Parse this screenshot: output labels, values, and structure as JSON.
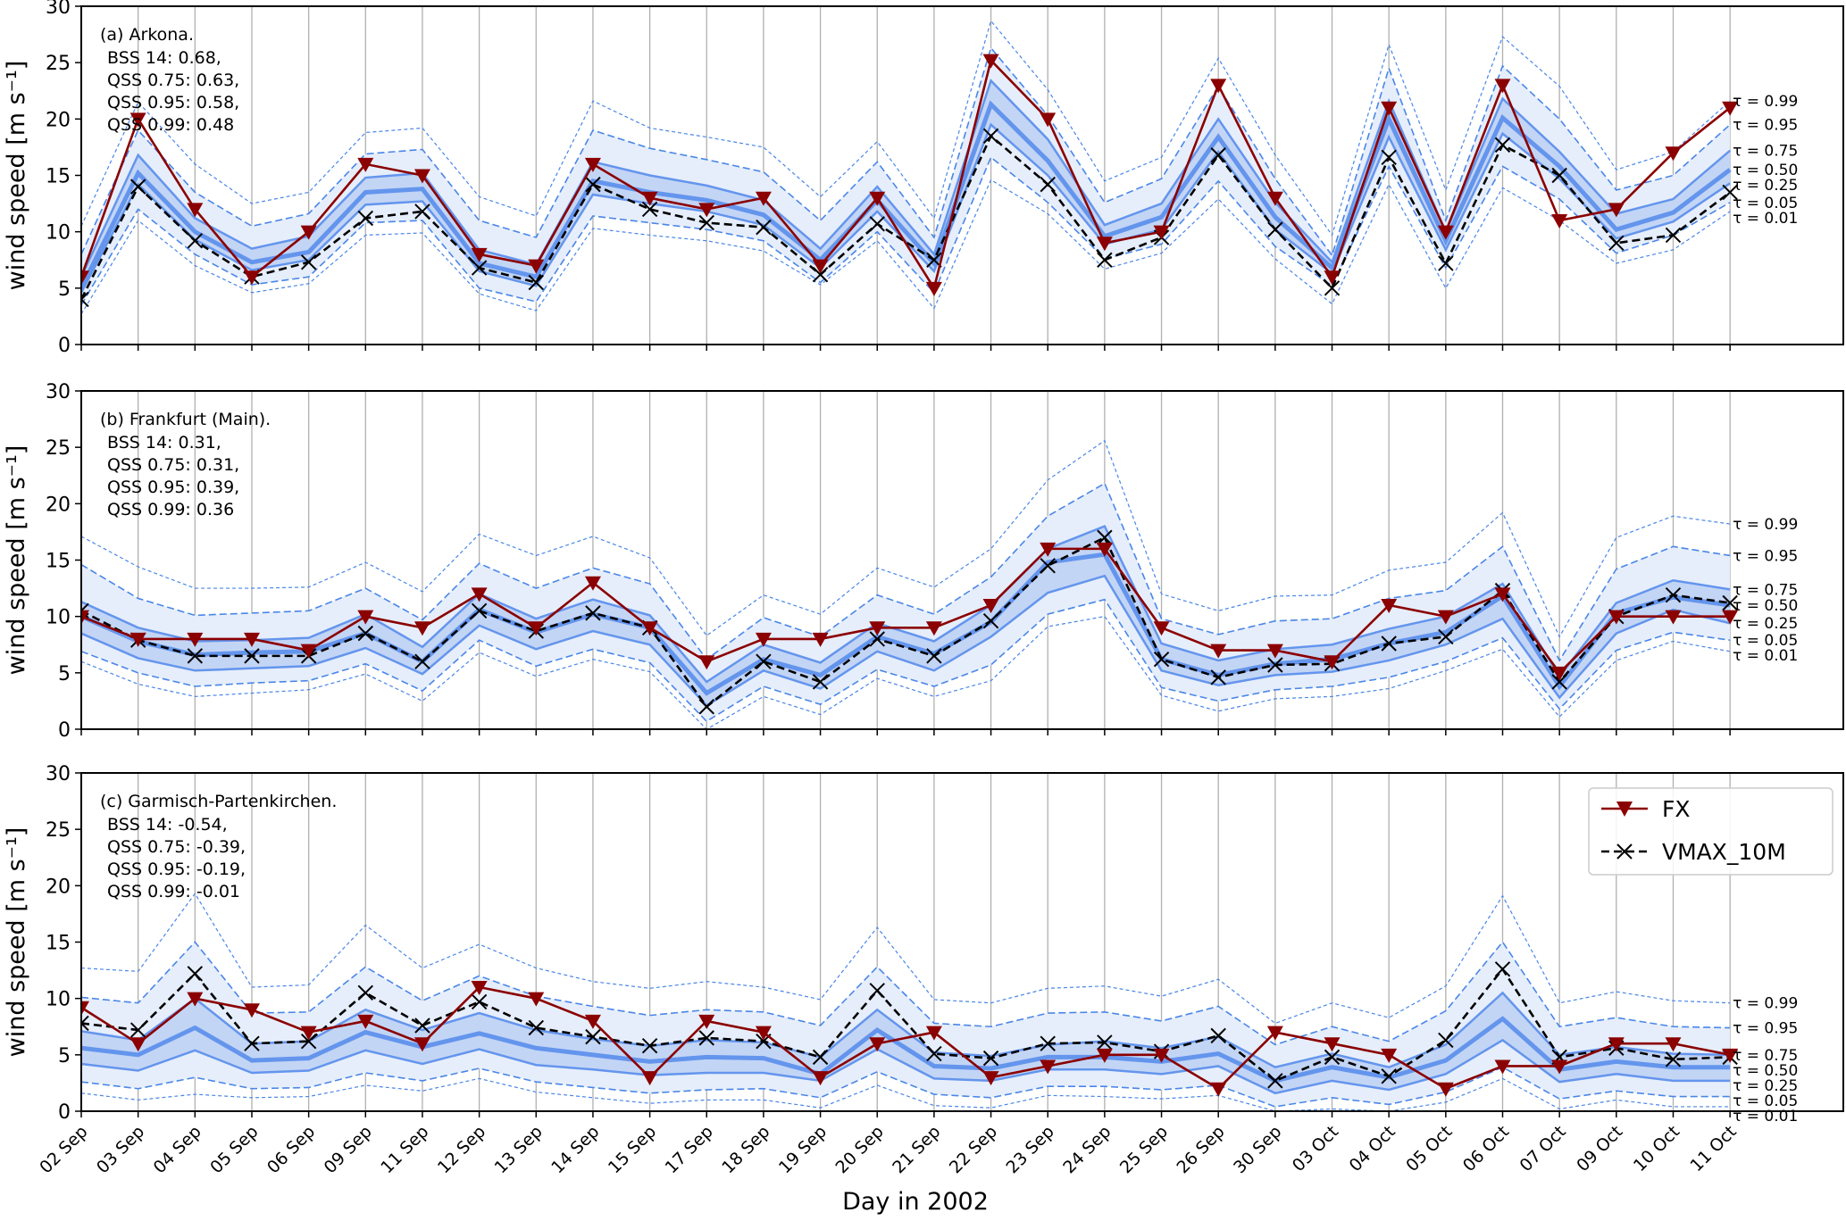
{
  "chart_data": {
    "type": "line",
    "xlabel": "Day in 2002",
    "ylabel": "wind speed [m s⁻¹]",
    "ylim": [
      0,
      30
    ],
    "yticks": [
      0,
      5,
      10,
      15,
      20,
      25,
      30
    ],
    "grid": "vertical",
    "categories": [
      "02 Sep",
      "03 Sep",
      "04 Sep",
      "05 Sep",
      "06 Sep",
      "09 Sep",
      "11 Sep",
      "12 Sep",
      "13 Sep",
      "14 Sep",
      "15 Sep",
      "17 Sep",
      "18 Sep",
      "19 Sep",
      "20 Sep",
      "21 Sep",
      "22 Sep",
      "23 Sep",
      "24 Sep",
      "25 Sep",
      "26 Sep",
      "30 Sep",
      "03 Oct",
      "04 Oct",
      "05 Oct",
      "06 Oct",
      "07 Oct",
      "09 Oct",
      "10 Oct",
      "11 Oct"
    ],
    "quantile_labels": [
      "τ = 0.99",
      "τ = 0.95",
      "τ = 0.75",
      "τ = 0.50",
      "τ = 0.25",
      "τ = 0.05",
      "τ = 0.01"
    ],
    "legend": {
      "position": "upper-right of panel (c)",
      "entries": [
        "FX",
        "VMAX_10M"
      ]
    },
    "colors": {
      "fx": "#8b0000",
      "vmax": "#000000",
      "quantile_line": "#6495ed",
      "outer_band": "#e6eefb",
      "inner_band": "#c3d5f5"
    },
    "panels": [
      {
        "title": "(a) Arkona.",
        "scores": [
          "BSS 14: 0.68,",
          "QSS 0.75: 0.63,",
          "QSS 0.95: 0.58,",
          "QSS 0.99: 0.48"
        ],
        "FX": [
          6,
          20,
          12,
          6,
          10,
          16,
          15,
          8,
          7,
          16,
          13,
          12,
          13,
          7,
          13,
          5,
          25.2,
          20,
          9,
          10,
          23,
          13,
          6,
          21,
          10,
          23,
          11,
          12,
          17,
          21
        ],
        "VMAX_10M": [
          4,
          14,
          9.2,
          6,
          7.3,
          11.2,
          11.8,
          6.8,
          5.5,
          14.2,
          12,
          10.8,
          10.4,
          6.2,
          10.7,
          7.5,
          18.5,
          14.2,
          7.5,
          9.5,
          16.8,
          10.2,
          5,
          16.6,
          7.2,
          17.7,
          15,
          9,
          9.7,
          13.5
        ],
        "quantiles": {
          "0.99": [
            10.5,
            21.5,
            16,
            12.5,
            13.5,
            18.8,
            19.2,
            13.1,
            11.4,
            21.6,
            19.2,
            18.4,
            17.5,
            13.1,
            18,
            11.2,
            28.7,
            22.6,
            14.5,
            16.6,
            25.4,
            16.8,
            9.7,
            26.6,
            13.7,
            27.3,
            22.9,
            15.5,
            17.1,
            21.6
          ],
          "0.95": [
            8,
            19,
            13.5,
            10.5,
            11.6,
            16.9,
            17.3,
            11,
            9.5,
            19,
            17.4,
            16.4,
            15.3,
            11,
            16.2,
            9.5,
            26.3,
            20.3,
            12.6,
            14.7,
            22.9,
            14.7,
            7.9,
            24.5,
            11,
            24.7,
            20,
            13.7,
            15,
            19.5
          ],
          "0.75": [
            6,
            16.8,
            11.2,
            8.5,
            9.6,
            14.8,
            15.2,
            8.4,
            7.1,
            16.2,
            15,
            14.1,
            12.8,
            8.5,
            14,
            8,
            23.4,
            18.2,
            10.6,
            12.5,
            20,
            12.6,
            7.3,
            21.6,
            10,
            21.8,
            17.1,
            11.6,
            12.9,
            17.2
          ],
          "0.50": [
            5,
            15.2,
            10,
            7.3,
            8.2,
            13.5,
            13.8,
            7.2,
            6,
            14.5,
            13.5,
            12.8,
            11.5,
            7.5,
            12.8,
            7.2,
            21.3,
            16.3,
            9.6,
            11.3,
            18.4,
            11.3,
            6.8,
            20,
            9.2,
            20.1,
            15.8,
            10.2,
            11.7,
            15.5
          ],
          "0.25": [
            4.6,
            14.2,
            9.3,
            6.6,
            7.5,
            12.4,
            12.7,
            6.5,
            5.2,
            13.3,
            12.5,
            11.8,
            10.6,
            6.8,
            11.8,
            6.5,
            19.5,
            15,
            8.9,
            10.2,
            17.1,
            10.2,
            6.3,
            18.4,
            8.4,
            18.7,
            14.7,
            9.4,
            10.9,
            14.3
          ],
          "0.05": [
            3.5,
            12,
            8,
            5.3,
            6,
            10.8,
            11,
            5,
            3.8,
            11.4,
            10.8,
            10.2,
            9.2,
            5.5,
            10,
            4.6,
            16.6,
            12.6,
            7.6,
            8.9,
            14.5,
            8.7,
            5.2,
            15.8,
            6.8,
            15.8,
            12.9,
            8.1,
            9.7,
            12.6
          ],
          "0.01": [
            2.7,
            11,
            7,
            4.6,
            5.4,
            9.7,
            9.9,
            4.5,
            3,
            10.3,
            9.7,
            9.2,
            8.3,
            5.3,
            9.2,
            3.2,
            14.6,
            11.6,
            6.7,
            8.1,
            12.9,
            7.6,
            3.6,
            14.2,
            5,
            13.9,
            11,
            7.2,
            8.4,
            11.8
          ]
        }
      },
      {
        "title": "(b) Frankfurt (Main).",
        "scores": [
          "BSS 14: 0.31,",
          "QSS 0.75: 0.31,",
          "QSS 0.95: 0.39,",
          "QSS 0.99: 0.36"
        ],
        "FX": [
          10,
          8,
          8,
          8,
          7,
          10,
          9,
          12,
          9,
          13,
          9,
          6,
          8,
          8,
          9,
          9,
          11,
          16,
          16,
          9,
          7,
          7,
          6,
          11,
          10,
          12,
          5,
          10,
          10,
          10
        ],
        "VMAX_10M": [
          10.5,
          7.9,
          6.5,
          6.5,
          6.5,
          8.5,
          6,
          10.5,
          8.7,
          10.3,
          9,
          2,
          6,
          4.2,
          8,
          6.5,
          9.6,
          14.5,
          17,
          6.2,
          4.6,
          5.7,
          5.8,
          7.6,
          8.2,
          12.3,
          4.2,
          10,
          11.9,
          11.2
        ],
        "quantiles": {
          "0.99": [
            17.1,
            14.4,
            12.5,
            12.5,
            12.6,
            14.8,
            12.2,
            17.3,
            15.4,
            17.1,
            15.2,
            8.3,
            11.9,
            10.2,
            14.3,
            12.6,
            16,
            22.1,
            25.6,
            12,
            10.5,
            11.8,
            11.9,
            14.1,
            14.8,
            19.2,
            8.2,
            17,
            18.9,
            18.2
          ],
          "0.95": [
            14.6,
            11.6,
            10.1,
            10.3,
            10.5,
            12.5,
            9.7,
            14.7,
            12.5,
            14.3,
            12.9,
            6.2,
            9.9,
            8.2,
            11.9,
            10.2,
            13.5,
            18.9,
            21.8,
            9.8,
            8.4,
            9.6,
            9.8,
            11.6,
            12.3,
            16.2,
            6.1,
            14.2,
            16.2,
            15.4
          ],
          "0.75": [
            11.3,
            9,
            7.8,
            7.9,
            8.1,
            10.2,
            7.3,
            12,
            9.8,
            11.5,
            10.1,
            4.2,
            7.5,
            5.9,
            9.4,
            7.8,
            11,
            16,
            18,
            7.6,
            6.1,
            7.1,
            7.5,
            8.9,
            10,
            12.9,
            4.7,
            11.2,
            13.2,
            12.4
          ],
          "0.50": [
            10,
            7.8,
            6.6,
            6.8,
            6.9,
            8.5,
            6,
            10.6,
            8.6,
            10.2,
            9,
            3.2,
            6.2,
            4.8,
            8.2,
            6.7,
            9.5,
            14.8,
            15.5,
            6.2,
            4.8,
            5.8,
            6.2,
            7.6,
            8.6,
            11.8,
            3.8,
            10.3,
            11.7,
            11
          ],
          "0.25": [
            8.5,
            6.3,
            5.2,
            5.4,
            5.6,
            7.2,
            4.9,
            9.2,
            7.1,
            8.7,
            7.5,
            2.1,
            5.2,
            3.6,
            6.9,
            5.2,
            8.2,
            12.1,
            13.6,
            5.2,
            3.9,
            4.8,
            5.1,
            6.1,
            7.5,
            9.8,
            2.8,
            8.5,
            10.6,
            9.4
          ],
          "0.05": [
            6.9,
            5,
            3.8,
            4.1,
            4.3,
            5.8,
            3.4,
            7.9,
            5.6,
            7.1,
            5.9,
            0.7,
            3.8,
            2.2,
            5.3,
            3.8,
            5.7,
            10.2,
            11.5,
            3.7,
            2.5,
            3.5,
            3.8,
            4.6,
            6,
            8.1,
            1.8,
            7,
            8.6,
            7.9
          ],
          "0.01": [
            6,
            4,
            2.9,
            3.2,
            3.5,
            4.9,
            2.5,
            6.8,
            4.7,
            6.2,
            5.1,
            0,
            2.9,
            1.3,
            4.5,
            2.9,
            4.3,
            9.1,
            10,
            3,
            1.6,
            2.7,
            2.9,
            3.6,
            5.2,
            7.1,
            1.1,
            6.1,
            7.8,
            6.9
          ]
        }
      },
      {
        "title": "(c) Garmisch-Partenkirchen.",
        "scores": [
          "BSS 14: -0.54,",
          "QSS 0.75: -0.39,",
          "QSS 0.95: -0.19,",
          "QSS 0.99: -0.01"
        ],
        "FX": [
          9.2,
          6,
          10,
          9,
          7,
          8,
          6,
          11,
          10,
          8,
          3,
          8,
          7,
          3,
          6,
          7,
          3,
          4,
          5,
          5,
          2,
          7,
          6,
          5,
          2,
          4,
          4,
          6,
          6,
          5
        ],
        "VMAX_10M": [
          7.8,
          7.2,
          12.2,
          6,
          6.2,
          10.5,
          7.6,
          9.7,
          7.4,
          6.6,
          5.8,
          6.5,
          6.2,
          4.8,
          10.7,
          5.1,
          4.7,
          6,
          6.1,
          5.3,
          6.7,
          2.7,
          4.8,
          3.1,
          6.3,
          12.6,
          4.8,
          5.6,
          4.6,
          4.8
        ],
        "quantiles": {
          "0.99": [
            12.7,
            12.4,
            19.3,
            11,
            11.2,
            16.5,
            12.7,
            14.8,
            12.7,
            11.5,
            10.9,
            11.5,
            11,
            9.9,
            16.3,
            9.9,
            9.6,
            10.9,
            11.1,
            10.2,
            11.7,
            7.8,
            9.6,
            8.3,
            11.1,
            19.1,
            9.6,
            10.6,
            9.8,
            9.6
          ],
          "0.95": [
            10.1,
            9.6,
            15,
            8.7,
            8.8,
            12.8,
            9.8,
            12,
            10.2,
            9.3,
            8.5,
            9,
            8.8,
            7.6,
            12.8,
            7.8,
            7.5,
            8.7,
            8.8,
            8,
            9.3,
            5.9,
            7.5,
            6.2,
            8.9,
            15,
            7.5,
            8.3,
            7.5,
            7.4
          ],
          "0.75": [
            7.1,
            6.3,
            10,
            6,
            6.2,
            9,
            7.2,
            8.7,
            7.2,
            6.4,
            5.8,
            6.3,
            6.1,
            4.8,
            9,
            5.2,
            4.9,
            5.9,
            6.2,
            5.6,
            6.6,
            3.9,
            5.1,
            3.9,
            5.9,
            10.5,
            5,
            5.7,
            5.1,
            5
          ],
          "0.50": [
            5.6,
            5,
            7.4,
            4.5,
            4.7,
            7,
            5.7,
            6.9,
            5.6,
            5,
            4.4,
            4.8,
            4.7,
            3.3,
            7.2,
            4,
            3.8,
            4.8,
            4.8,
            4.4,
            5.1,
            2.7,
            3.9,
            3,
            4.5,
            8.2,
            3.7,
            4.4,
            3.9,
            3.9
          ],
          "0.25": [
            4.2,
            3.6,
            5.4,
            3.4,
            3.6,
            5.4,
            4.2,
            5.5,
            4.1,
            3.7,
            3.2,
            3.4,
            3.4,
            2.7,
            5.5,
            2.9,
            2.7,
            3.7,
            3.7,
            3.3,
            4,
            1.6,
            2.7,
            1.9,
            3.3,
            6.3,
            2.6,
            3.3,
            2.7,
            2.7
          ],
          "0.05": [
            2.6,
            2,
            3,
            2,
            2.1,
            3.4,
            2.7,
            3.8,
            2.6,
            2.1,
            1.6,
            1.9,
            2,
            1.2,
            3.5,
            1.5,
            1.2,
            2.2,
            2.2,
            1.9,
            2.3,
            0.4,
            1.2,
            0.6,
            1.7,
            3.9,
            1.1,
            1.8,
            1.3,
            1.3
          ],
          "0.01": [
            1.6,
            1,
            1.5,
            1.2,
            1.3,
            2.3,
            1.8,
            2.9,
            1.7,
            1.2,
            0.7,
            1,
            1,
            0.3,
            2.3,
            0.5,
            0.3,
            1.4,
            1.3,
            1.1,
            1.4,
            0,
            0.2,
            0,
            0.8,
            2.9,
            0.2,
            1,
            0.4,
            0.4
          ]
        }
      }
    ]
  }
}
